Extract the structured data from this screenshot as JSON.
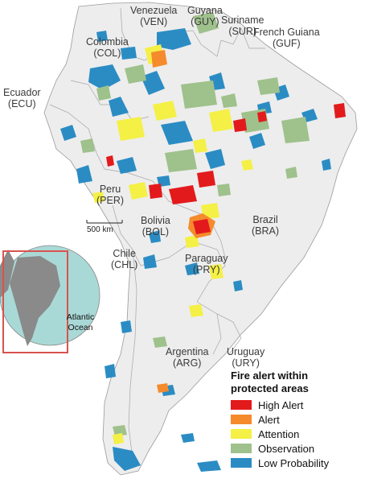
{
  "map": {
    "countries": [
      {
        "name": "Venezuela",
        "code": "(VEN)"
      },
      {
        "name": "Guyana",
        "code": "(GUY)"
      },
      {
        "name": "Suriname",
        "code": "(SUR)"
      },
      {
        "name": "French Guiana",
        "code": "(GUF)"
      },
      {
        "name": "Colombia",
        "code": "(COL)"
      },
      {
        "name": "Ecuador",
        "code": "(ECU)"
      },
      {
        "name": "Peru",
        "code": "(PER)"
      },
      {
        "name": "Bolivia",
        "code": "(BOL)"
      },
      {
        "name": "Brazil",
        "code": "(BRA)"
      },
      {
        "name": "Chile",
        "code": "(CHL)"
      },
      {
        "name": "Paraguay",
        "code": "(PRY)"
      },
      {
        "name": "Argentina",
        "code": "(ARG)"
      },
      {
        "name": "Uruguay",
        "code": "(URY)"
      }
    ],
    "scale_bar": "500 km",
    "inset_label": "Atlantic Ocean",
    "colors": {
      "land": "#ededed",
      "border": "#9a9a9a",
      "ocean_inset": "#a9d9d6",
      "inset_frame": "#d9534f"
    }
  },
  "legend": {
    "title_line1": "Fire alert within",
    "title_line2": "protected areas",
    "items": [
      {
        "label": "High Alert",
        "color": "#e31a1c"
      },
      {
        "label": "Alert",
        "color": "#f58b2c"
      },
      {
        "label": "Attention",
        "color": "#f4f046"
      },
      {
        "label": "Observation",
        "color": "#9fc18c"
      },
      {
        "label": "Low Probability",
        "color": "#2b8cc4"
      }
    ]
  }
}
